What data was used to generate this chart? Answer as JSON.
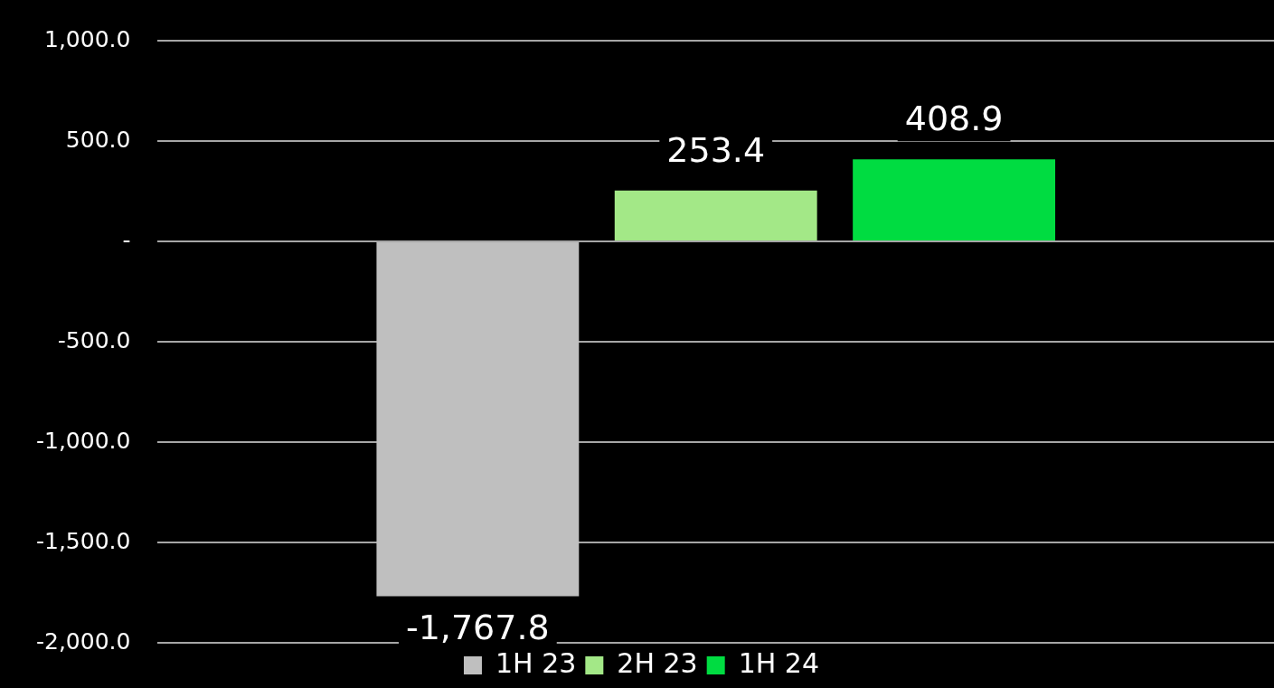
{
  "chart_data": {
    "type": "bar",
    "categories": [
      null
    ],
    "series": [
      {
        "name": "1H 23",
        "color": "#bfbfbf",
        "values": [
          -1767.8
        ],
        "value_labels": [
          "-1,767.8"
        ]
      },
      {
        "name": "2H 23",
        "color": "#a3e887",
        "values": [
          253.4
        ],
        "value_labels": [
          "253.4"
        ]
      },
      {
        "name": "1H 24",
        "color": "#00dc41",
        "values": [
          408.9
        ],
        "value_labels": [
          "408.9"
        ]
      }
    ],
    "ylim": [
      -2000,
      1000
    ],
    "yticks": [
      {
        "value": -2000,
        "label": "-2,000.0"
      },
      {
        "value": -1500,
        "label": "-1,500.0"
      },
      {
        "value": -1000,
        "label": "-1,000.0"
      },
      {
        "value": -500,
        "label": "-500.0"
      },
      {
        "value": 0,
        "label": "-"
      },
      {
        "value": 500,
        "label": "500.0"
      },
      {
        "value": 1000,
        "label": "1,000.0"
      }
    ],
    "grid": "y",
    "legend": "bottom"
  }
}
